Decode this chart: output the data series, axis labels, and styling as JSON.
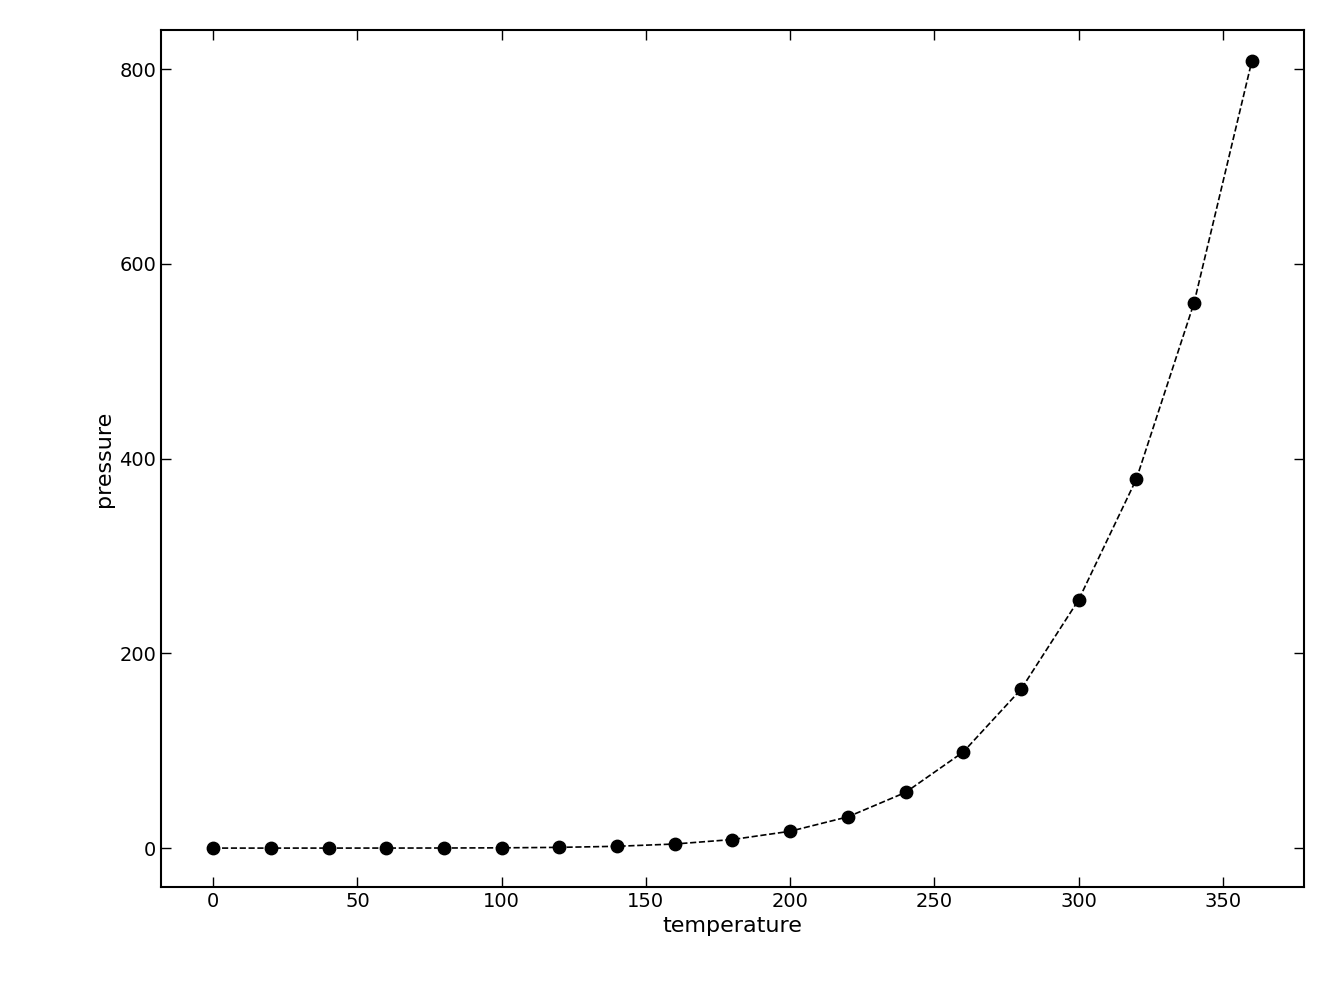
{
  "temperature": [
    0,
    20,
    40,
    60,
    80,
    100,
    120,
    140,
    160,
    180,
    200,
    220,
    240,
    260,
    280,
    300,
    320,
    340,
    360
  ],
  "pressure": [
    0.0002,
    0.0012,
    0.006,
    0.03,
    0.09,
    0.27,
    0.75,
    1.85,
    4.2,
    8.8,
    17.3,
    32.1,
    57.2,
    98.7,
    163.0,
    255.0,
    379.0,
    560.0,
    808.0
  ],
  "xlabel": "temperature",
  "ylabel": "pressure",
  "xlim": [
    -18,
    378
  ],
  "ylim": [
    -40,
    840
  ],
  "yticks": [
    0,
    200,
    400,
    600,
    800
  ],
  "xticks": [
    0,
    50,
    100,
    150,
    200,
    250,
    300,
    350
  ],
  "line_color": "#000000",
  "point_color": "#000000",
  "line_style": "--",
  "point_size": 80,
  "background_color": "#ffffff",
  "xlabel_fontsize": 16,
  "ylabel_fontsize": 16,
  "tick_fontsize": 14,
  "spine_linewidth": 1.5
}
